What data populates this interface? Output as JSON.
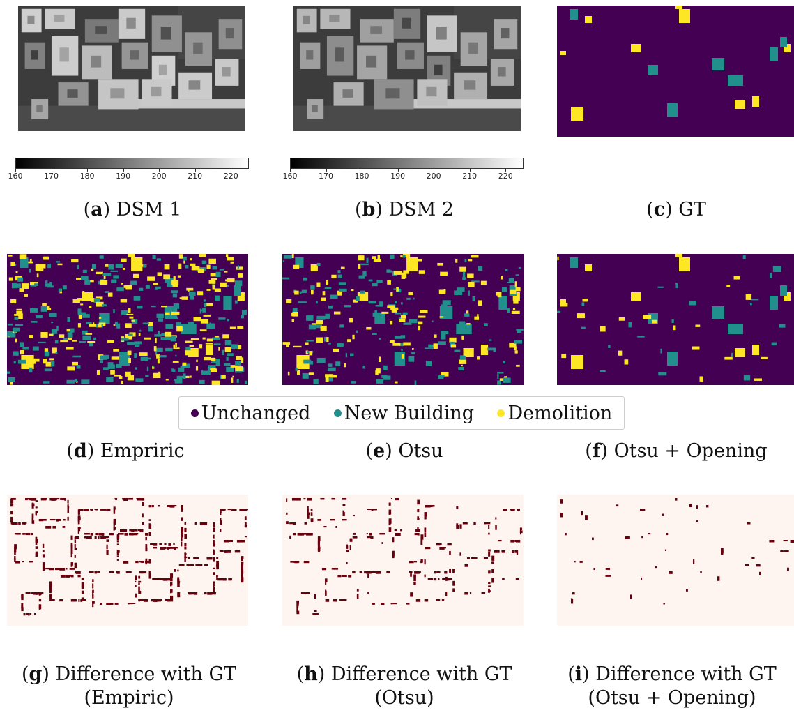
{
  "colors": {
    "unchanged": "#440154",
    "new_building": "#21908d",
    "demolition": "#fde725",
    "diff_background": "#fff5f0",
    "diff_error": "#67000d"
  },
  "colorbar_ticks": [
    "160",
    "170",
    "180",
    "190",
    "200",
    "210",
    "220"
  ],
  "captions": {
    "a": {
      "letter": "a",
      "text": "DSM 1"
    },
    "b": {
      "letter": "b",
      "text": "DSM 2"
    },
    "c": {
      "letter": "c",
      "text": "GT"
    },
    "d": {
      "letter": "d",
      "text": "Empriric"
    },
    "e": {
      "letter": "e",
      "text": "Otsu"
    },
    "f": {
      "letter": "f",
      "text": "Otsu + Opening"
    },
    "g": {
      "letter": "g",
      "line1": "Difference with GT",
      "line2": "(Empiric)"
    },
    "h": {
      "letter": "h",
      "line1": "Difference with GT",
      "line2": "(Otsu)"
    },
    "i": {
      "letter": "i",
      "line1": "Difference with GT",
      "line2": "(Otsu + Opening)"
    }
  },
  "legend": {
    "unchanged": "Unchanged",
    "new_building": "New Building",
    "demolition": "Demolition"
  }
}
